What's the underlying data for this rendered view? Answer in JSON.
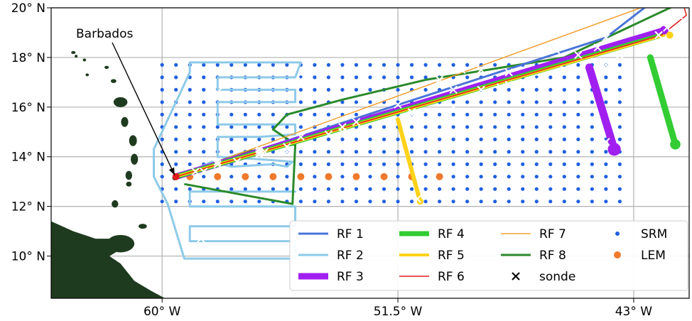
{
  "map": {
    "x_ticks": [
      {
        "lon": -60,
        "label": "60° W"
      },
      {
        "lon": -51.5,
        "label": "51.5° W"
      },
      {
        "lon": -43,
        "label": "43° W"
      }
    ],
    "y_ticks": [
      {
        "lat": 20,
        "label": "20° N"
      },
      {
        "lat": 18,
        "label": "18° N"
      },
      {
        "lat": 16,
        "label": "16° N"
      },
      {
        "lat": 14,
        "label": "14° N"
      },
      {
        "lat": 12,
        "label": "12° N"
      },
      {
        "lat": 10,
        "label": "10° N"
      }
    ],
    "extent": {
      "lon": [
        -64,
        -41
      ],
      "lat": [
        8.3,
        20
      ]
    },
    "annotation": {
      "text": "Barbados",
      "lon": -59.55,
      "lat": 13.15
    },
    "grid": true
  },
  "colors": {
    "land": "#1f3b1f",
    "srm": "#1f5fe0",
    "lem": "#f07a2b",
    "rf1": "#4a74d8",
    "rf2": "#8ecae8",
    "rf3": "#a020f0",
    "rf4": "#33cc33",
    "rf5": "#ffd21a",
    "rf6": "#e01b1b",
    "rf7": "#f0a030",
    "rf8": "#2a8a2a"
  },
  "chart_data": {
    "type": "map",
    "grids": {
      "SRM": {
        "lon": [
          -60,
          -43.3
        ],
        "lat": [
          12.2,
          17.8
        ],
        "step": 0.5
      },
      "LEM": {
        "points": [
          [
            -59,
            13.2
          ],
          [
            -58,
            13.2
          ],
          [
            -57,
            13.2
          ],
          [
            -56,
            13.2
          ],
          [
            -55,
            13.2
          ],
          [
            -54,
            13.2
          ],
          [
            -53,
            13.2
          ],
          [
            -52,
            13.2
          ],
          [
            -51,
            13.2
          ],
          [
            -50,
            13.2
          ]
        ]
      }
    },
    "flights": [
      {
        "name": "RF 1",
        "track": [
          [
            -59.5,
            13.2
          ],
          [
            -44,
            18.8
          ],
          [
            -42.5,
            20.1
          ]
        ],
        "sondes": [
          [
            -58,
            13.8
          ],
          [
            -56.5,
            14.2
          ],
          [
            -55,
            14.8
          ],
          [
            -53,
            15.4
          ],
          [
            -51.5,
            16.1
          ],
          [
            -49.5,
            16.7
          ],
          [
            -47.5,
            17.4
          ],
          [
            -44,
            18.8
          ]
        ]
      },
      {
        "name": "RF 2",
        "track": [
          [
            -59.5,
            13.2
          ],
          [
            -59.2,
            13.3
          ],
          [
            -58.2,
            13.8
          ],
          [
            -57.5,
            13.6
          ],
          [
            -56,
            13.7
          ],
          [
            -55.5,
            13.6
          ],
          [
            -55.3,
            13.8
          ],
          [
            -56.5,
            13.9
          ],
          [
            -58,
            14
          ],
          [
            -58,
            14.8
          ],
          [
            -56.5,
            14.8
          ],
          [
            -55.2,
            14.9
          ],
          [
            -55.2,
            15.3
          ],
          [
            -58,
            15.3
          ],
          [
            -58,
            16.2
          ],
          [
            -55.2,
            16.2
          ],
          [
            -55.2,
            16.7
          ],
          [
            -58,
            16.7
          ],
          [
            -58,
            17.2
          ],
          [
            -55.2,
            17.2
          ],
          [
            -55,
            17.8
          ],
          [
            -59,
            17.8
          ],
          [
            -59,
            17.4
          ],
          [
            -60.3,
            14.3
          ],
          [
            -60.3,
            13.2
          ],
          [
            -59.8,
            12.1
          ],
          [
            -59.2,
            9.9
          ],
          [
            -55.2,
            9.9
          ],
          [
            -55.2,
            10.6
          ],
          [
            -59,
            10.6
          ],
          [
            -59,
            11.2
          ],
          [
            -55.2,
            11.2
          ],
          [
            -55.2,
            12
          ],
          [
            -59,
            12
          ],
          [
            -59,
            12.6
          ],
          [
            -55.2,
            12.6
          ]
        ],
        "sondes": [
          [
            -58,
            13.8
          ],
          [
            -56.5,
            14.1
          ],
          [
            -58.8,
            17.5
          ],
          [
            -58,
            16.6
          ],
          [
            -55,
            17.1
          ],
          [
            -56.5,
            14.3
          ],
          [
            -58.6,
            10.7
          ]
        ]
      },
      {
        "name": "RF 3",
        "track": [
          [
            -59.5,
            13.2
          ],
          [
            -41.9,
            19.1
          ]
        ],
        "sondes": [
          [
            -58.8,
            13.4
          ],
          [
            -57.3,
            13.8
          ],
          [
            -55.5,
            14.4
          ],
          [
            -53.5,
            15
          ],
          [
            -51,
            15.7
          ],
          [
            -49.5,
            16
          ],
          [
            -46.5,
            17.1
          ],
          [
            -44,
            17.7
          ],
          [
            -42.1,
            18.9
          ],
          [
            -41.8,
            19.2
          ]
        ],
        "dash": {
          "start": [
            -44.6,
            17.6
          ],
          "end": [
            -43.7,
            14.3
          ],
          "sondes": [
            [
              -44,
              14.6
            ]
          ]
        }
      },
      {
        "name": "RF 4",
        "track": [
          [
            -59.5,
            13.2
          ],
          [
            -42,
            18.9
          ]
        ],
        "sondes": [
          [
            -58.5,
            13.4
          ],
          [
            -56.3,
            14.2
          ],
          [
            -54,
            14.9
          ],
          [
            -48.5,
            16.7
          ],
          [
            -45.5,
            17.5
          ],
          [
            -43.5,
            18.1
          ],
          [
            -42.1,
            18.9
          ]
        ],
        "dash": {
          "start": [
            -42.4,
            18
          ],
          "end": [
            -41.5,
            14.5
          ],
          "sondes": [
            [
              -41.3,
              15.3
            ]
          ]
        }
      },
      {
        "name": "RF 5",
        "track": [
          [
            -59.5,
            13.2
          ],
          [
            -41.9,
            18.9
          ]
        ],
        "sondes": [
          [
            -58,
            13.7
          ],
          [
            -53.5,
            15.2
          ],
          [
            -51,
            15.8
          ],
          [
            -47.5,
            16.9
          ]
        ],
        "dash": {
          "start": [
            -51.5,
            15.5
          ],
          "end": [
            -50.7,
            12.2
          ],
          "sondes": [
            [
              -50.8,
              12.3
            ]
          ]
        }
      },
      {
        "name": "RF 6",
        "track": [
          [
            -59.5,
            13.2
          ],
          [
            -42,
            18.9
          ],
          [
            -41.1,
            19.7
          ],
          [
            -41.2,
            20.1
          ]
        ],
        "sondes": [
          [
            -53.3,
            14.9
          ],
          [
            -47.8,
            16.8
          ],
          [
            -45,
            18.1
          ],
          [
            -41.2,
            19.5
          ]
        ]
      },
      {
        "name": "RF 7",
        "track": [
          [
            -59.5,
            13.2
          ],
          [
            -42.5,
            20.1
          ]
        ],
        "sondes": [
          [
            -50,
            17.1
          ],
          [
            -49.2,
            17.5
          ],
          [
            -45.5,
            18.6
          ],
          [
            -44.3,
            18.4
          ]
        ]
      },
      {
        "name": "RF 8",
        "track": [
          [
            -59.5,
            13.2
          ],
          [
            -57,
            14.2
          ],
          [
            -55.2,
            14.5
          ],
          [
            -56,
            15.1
          ],
          [
            -55.5,
            15.7
          ],
          [
            -53.5,
            16.3
          ],
          [
            -50.5,
            17.1
          ],
          [
            -45.5,
            18
          ],
          [
            -41.5,
            20.1
          ]
        ],
        "extra": [
          [
            -55.3,
            12.1
          ],
          [
            -59.2,
            12.9
          ]
        ],
        "sondes": [
          [
            -55.5,
            14.2
          ],
          [
            -54.8,
            12.8
          ],
          [
            -48.5,
            17.5
          ],
          [
            -45.8,
            18.3
          ]
        ]
      }
    ]
  },
  "legend": {
    "items": [
      {
        "label": "RF 1",
        "color": "#4a74d8",
        "kind": "line",
        "w": 3
      },
      {
        "label": "RF 2",
        "color": "#8ecae8",
        "kind": "line",
        "w": 3
      },
      {
        "label": "RF 3",
        "color": "#a020f0",
        "kind": "line",
        "w": 9
      },
      {
        "label": "RF 4",
        "color": "#33cc33",
        "kind": "line",
        "w": 7
      },
      {
        "label": "RF 5",
        "color": "#ffd21a",
        "kind": "line",
        "w": 4
      },
      {
        "label": "RF 6",
        "color": "#e01b1b",
        "kind": "line",
        "w": 1.5
      },
      {
        "label": "RF 7",
        "color": "#f0a030",
        "kind": "line",
        "w": 1.5
      },
      {
        "label": "RF 8",
        "color": "#2a8a2a",
        "kind": "line",
        "w": 3
      },
      {
        "label": "sonde",
        "color": "#000000",
        "kind": "x",
        "w": 2
      },
      {
        "label": "SRM",
        "color": "#1f5fe0",
        "kind": "dot",
        "w": 0
      },
      {
        "label": "LEM",
        "color": "#f07a2b",
        "kind": "dot",
        "w": 0
      }
    ]
  }
}
